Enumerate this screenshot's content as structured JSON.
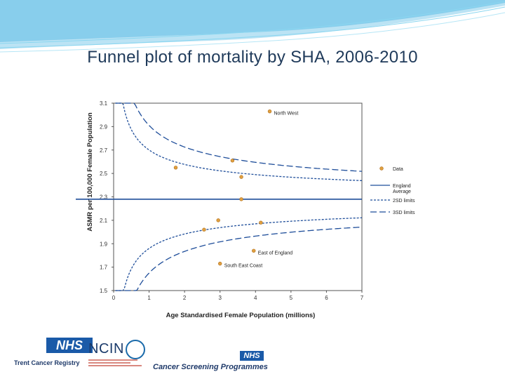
{
  "slide": {
    "title": "Funnel plot of mortality by SHA, 2006-2010",
    "logos": {
      "nhs": "NHS",
      "trent": "Trent Cancer Registry",
      "ncin": "NCIN",
      "nhs_small": "NHS",
      "csp": "Cancer Screening Programmes"
    },
    "colors": {
      "data_point": "#e0a040",
      "series_line": "#1f4e9a",
      "title": "#1f3a5a",
      "banner": "#5fc8e8"
    }
  },
  "chart_data": {
    "type": "scatter",
    "title": "",
    "xlabel": "Age Standardised Female Population (millions)",
    "ylabel": "ASMR per 100,000 Female Population",
    "xlim": [
      0,
      7
    ],
    "ylim": [
      1.5,
      3.1
    ],
    "xticks": [
      0,
      1,
      2,
      3,
      4,
      5,
      6,
      7
    ],
    "yticks": [
      1.5,
      1.7,
      1.9,
      2.1,
      2.3,
      2.5,
      2.7,
      2.9,
      3.1
    ],
    "grid": false,
    "legend_position": "right",
    "england_average": 2.28,
    "points": [
      {
        "x": 4.4,
        "y": 3.03,
        "label": "North West"
      },
      {
        "x": 3.35,
        "y": 2.61,
        "label": ""
      },
      {
        "x": 1.75,
        "y": 2.55,
        "label": ""
      },
      {
        "x": 3.6,
        "y": 2.47,
        "label": ""
      },
      {
        "x": 3.6,
        "y": 2.28,
        "label": ""
      },
      {
        "x": 2.95,
        "y": 2.1,
        "label": ""
      },
      {
        "x": 4.15,
        "y": 2.08,
        "label": ""
      },
      {
        "x": 2.55,
        "y": 2.02,
        "label": ""
      },
      {
        "x": 3.95,
        "y": 1.84,
        "label": "East of England"
      },
      {
        "x": 3.0,
        "y": 1.73,
        "label": "South East Coast"
      }
    ],
    "legend": [
      {
        "name": "Data",
        "kind": "point"
      },
      {
        "name": "England Average",
        "kind": "solid"
      },
      {
        "name": "2SD limits",
        "kind": "short-dash"
      },
      {
        "name": "3SD limits",
        "kind": "long-dash"
      }
    ],
    "limits": {
      "sd_unit": 0.21
    }
  }
}
